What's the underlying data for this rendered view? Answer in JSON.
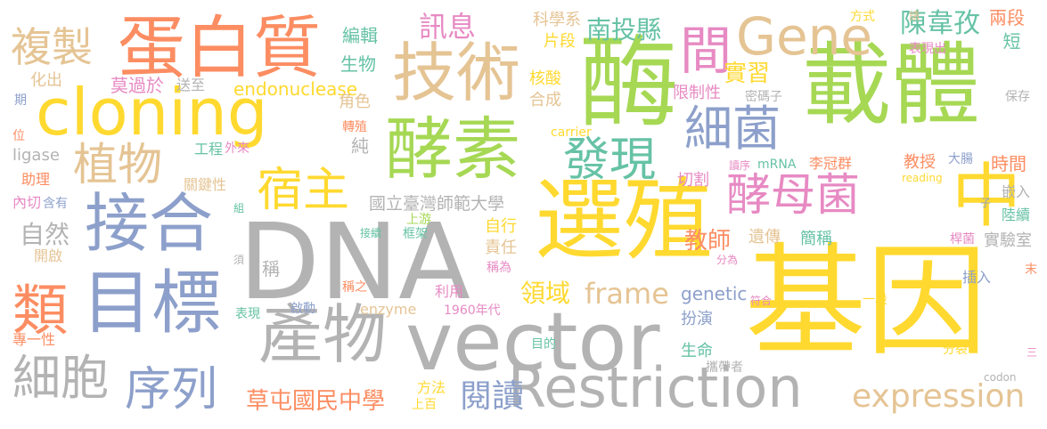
{
  "title": "",
  "colors": {
    "gray": "#b3b3b3",
    "tan": "#e5c494",
    "yellow": "#ffd92f",
    "green": "#a6d854",
    "blue": "#8da0cb",
    "pink": "#e78ac3",
    "orange": "#fc8d62",
    "teal": "#66c2a5"
  },
  "words": [
    {
      "id": "dna",
      "text": "DNA",
      "color": "gray"
    },
    {
      "id": "jiyin",
      "text": "基因",
      "color": "yellow"
    },
    {
      "id": "vector",
      "text": "vector",
      "color": "gray"
    },
    {
      "id": "xuanzhi",
      "text": "選殖",
      "color": "yellow"
    },
    {
      "id": "mei",
      "text": "酶",
      "color": "green"
    },
    {
      "id": "zaiti",
      "text": "載體",
      "color": "green"
    },
    {
      "id": "cloning",
      "text": "cloning",
      "color": "yellow"
    },
    {
      "id": "restriction",
      "text": "Restriction",
      "color": "gray"
    },
    {
      "id": "chanwu",
      "text": "產物",
      "color": "gray"
    },
    {
      "id": "jiehe",
      "text": "接合",
      "color": "blue"
    },
    {
      "id": "mubiao",
      "text": "目標",
      "color": "blue"
    },
    {
      "id": "meisu",
      "text": "酵素",
      "color": "green"
    },
    {
      "id": "danbaizhi",
      "text": "蛋白質",
      "color": "orange"
    },
    {
      "id": "jishu",
      "text": "技術",
      "color": "tan"
    },
    {
      "id": "zhong",
      "text": "中",
      "color": "yellow"
    },
    {
      "id": "gene",
      "text": "Gene",
      "color": "tan"
    },
    {
      "id": "fuzhi",
      "text": "複製",
      "color": "tan"
    },
    {
      "id": "zhiwu",
      "text": "植物",
      "color": "tan"
    },
    {
      "id": "lei",
      "text": "類",
      "color": "orange"
    },
    {
      "id": "xibao",
      "text": "細胞",
      "color": "gray"
    },
    {
      "id": "xulie",
      "text": "序列",
      "color": "blue"
    },
    {
      "id": "suzhu",
      "text": "宿主",
      "color": "yellow"
    },
    {
      "id": "faxian",
      "text": "發現",
      "color": "teal"
    },
    {
      "id": "xijun",
      "text": "細菌",
      "color": "blue"
    },
    {
      "id": "jiaomujun",
      "text": "酵母菌",
      "color": "pink"
    },
    {
      "id": "expression",
      "text": "expression",
      "color": "tan"
    },
    {
      "id": "jian",
      "text": "間",
      "color": "pink"
    },
    {
      "id": "frame",
      "text": "frame",
      "color": "tan"
    },
    {
      "id": "xunxi",
      "text": "訊息",
      "color": "pink"
    },
    {
      "id": "nantouxian",
      "text": "南投縣",
      "color": "teal"
    },
    {
      "id": "chenweimin",
      "text": "陳韋孜",
      "color": "teal"
    },
    {
      "id": "endonuclease",
      "text": "endonuclease",
      "color": "yellow"
    },
    {
      "id": "shixi",
      "text": "實習",
      "color": "yellow"
    },
    {
      "id": "jiaoshi",
      "text": "教師",
      "color": "orange"
    },
    {
      "id": "lingyu",
      "text": "領域",
      "color": "yellow"
    },
    {
      "id": "yuedu",
      "text": "閱讀",
      "color": "blue"
    },
    {
      "id": "caotun",
      "text": "草屯國民中學",
      "color": "orange"
    },
    {
      "id": "guoli",
      "text": "國立臺灣師範大學",
      "color": "gray"
    },
    {
      "id": "ziran",
      "text": "自然",
      "color": "gray"
    },
    {
      "id": "bianji",
      "text": "編輯",
      "color": "teal"
    },
    {
      "id": "shengwu",
      "text": "生物",
      "color": "teal"
    },
    {
      "id": "kexuexi",
      "text": "科學系",
      "color": "tan"
    },
    {
      "id": "pianduan",
      "text": "片段",
      "color": "yellow"
    },
    {
      "id": "fangshi",
      "text": "方式",
      "color": "yellow"
    },
    {
      "id": "liangduan",
      "text": "兩段",
      "color": "orange"
    },
    {
      "id": "duan",
      "text": "短",
      "color": "teal"
    },
    {
      "id": "qing",
      "text": "請",
      "color": "tan"
    },
    {
      "id": "biaoxianchu",
      "text": "表現出",
      "color": "pink"
    },
    {
      "id": "mokeguoyu",
      "text": "莫過於",
      "color": "pink"
    },
    {
      "id": "songzhi",
      "text": "送至",
      "color": "gray"
    },
    {
      "id": "huachu",
      "text": "化出",
      "color": "tan"
    },
    {
      "id": "hesuan",
      "text": "核酸",
      "color": "yellow"
    },
    {
      "id": "hecheng",
      "text": "合成",
      "color": "tan"
    },
    {
      "id": "xianzhixing",
      "text": "限制性",
      "color": "pink"
    },
    {
      "id": "mimazi",
      "text": "密碼子",
      "color": "gray"
    },
    {
      "id": "baocun",
      "text": "保存",
      "color": "gray"
    },
    {
      "id": "qi",
      "text": "期",
      "color": "blue"
    },
    {
      "id": "wei",
      "text": "位",
      "color": "orange"
    },
    {
      "id": "jiaose",
      "text": "角色",
      "color": "tan"
    },
    {
      "id": "carrier",
      "text": "carrier",
      "color": "yellow"
    },
    {
      "id": "zhuanzhi",
      "text": "轉殖",
      "color": "orange"
    },
    {
      "id": "gongcheng",
      "text": "工程",
      "color": "teal"
    },
    {
      "id": "wailai",
      "text": "外來",
      "color": "pink"
    },
    {
      "id": "chun",
      "text": "純",
      "color": "gray"
    },
    {
      "id": "ligase",
      "text": "ligase",
      "color": "gray"
    },
    {
      "id": "duxu",
      "text": "讀序",
      "color": "pink"
    },
    {
      "id": "mrna",
      "text": "mRNA",
      "color": "teal"
    },
    {
      "id": "liguanqun",
      "text": "李冠群",
      "color": "orange"
    },
    {
      "id": "jiaoshou",
      "text": "教授",
      "color": "orange"
    },
    {
      "id": "dachang",
      "text": "大腸",
      "color": "blue"
    },
    {
      "id": "shijian",
      "text": "時間",
      "color": "orange"
    },
    {
      "id": "reading",
      "text": "reading",
      "color": "yellow"
    },
    {
      "id": "zhuli",
      "text": "助理",
      "color": "orange"
    },
    {
      "id": "guanjianxing",
      "text": "關鍵性",
      "color": "tan"
    },
    {
      "id": "qiege",
      "text": "切割",
      "color": "pink"
    },
    {
      "id": "qianru",
      "text": "嵌入",
      "color": "gray"
    },
    {
      "id": "zi",
      "text": "子",
      "color": "blue"
    },
    {
      "id": "luxu",
      "text": "陸續",
      "color": "teal"
    },
    {
      "id": "neiqie",
      "text": "內切",
      "color": "pink"
    },
    {
      "id": "hanyou",
      "text": "含有",
      "color": "blue"
    },
    {
      "id": "zu",
      "text": "組",
      "color": "teal"
    },
    {
      "id": "shangyou",
      "text": "上游",
      "color": "green"
    },
    {
      "id": "jiexu",
      "text": "接續",
      "color": "teal"
    },
    {
      "id": "kuangjia",
      "text": "框架",
      "color": "teal"
    },
    {
      "id": "zixing",
      "text": "自行",
      "color": "yellow"
    },
    {
      "id": "zeren",
      "text": "責任",
      "color": "tan"
    },
    {
      "id": "chengwei",
      "text": "稱為",
      "color": "pink"
    },
    {
      "id": "yichuan",
      "text": "遺傳",
      "color": "tan"
    },
    {
      "id": "jiancheng",
      "text": "簡稱",
      "color": "teal"
    },
    {
      "id": "ganjun",
      "text": "桿菌",
      "color": "pink"
    },
    {
      "id": "shiyanshi",
      "text": "實驗室",
      "color": "gray"
    },
    {
      "id": "kaiqi",
      "text": "開啟",
      "color": "tan"
    },
    {
      "id": "xu",
      "text": "須",
      "color": "gray"
    },
    {
      "id": "cheng",
      "text": "稱",
      "color": "gray"
    },
    {
      "id": "fenwei",
      "text": "分為",
      "color": "pink"
    },
    {
      "id": "mo",
      "text": "末",
      "color": "orange"
    },
    {
      "id": "chazhi",
      "text": "插入",
      "color": "blue"
    },
    {
      "id": "chengzhi",
      "text": "稱之",
      "color": "orange"
    },
    {
      "id": "liyong",
      "text": "利用",
      "color": "pink"
    },
    {
      "id": "genetic",
      "text": "genetic",
      "color": "blue"
    },
    {
      "id": "fuhe",
      "text": "符合",
      "color": "pink"
    },
    {
      "id": "yiduan",
      "text": "一段",
      "color": "yellow"
    },
    {
      "id": "biaoxian",
      "text": "表現",
      "color": "teal"
    },
    {
      "id": "qidong",
      "text": "啟動",
      "color": "blue"
    },
    {
      "id": "enzyme",
      "text": "enzyme",
      "color": "tan"
    },
    {
      "id": "y1960",
      "text": "1960年代",
      "color": "pink"
    },
    {
      "id": "zhuanyi",
      "text": "專一性",
      "color": "orange"
    },
    {
      "id": "banyan",
      "text": "扮演",
      "color": "blue"
    },
    {
      "id": "mudi",
      "text": "目的",
      "color": "teal"
    },
    {
      "id": "shengming",
      "text": "生命",
      "color": "teal"
    },
    {
      "id": "fenlie",
      "text": "分裂",
      "color": "yellow"
    },
    {
      "id": "san",
      "text": "三",
      "color": "pink"
    },
    {
      "id": "xiedaizhe",
      "text": "攜帶者",
      "color": "gray"
    },
    {
      "id": "codon",
      "text": "codon",
      "color": "gray"
    },
    {
      "id": "fangfa",
      "text": "方法",
      "color": "yellow"
    },
    {
      "id": "shanggu",
      "text": "上百",
      "color": "yellow"
    }
  ]
}
